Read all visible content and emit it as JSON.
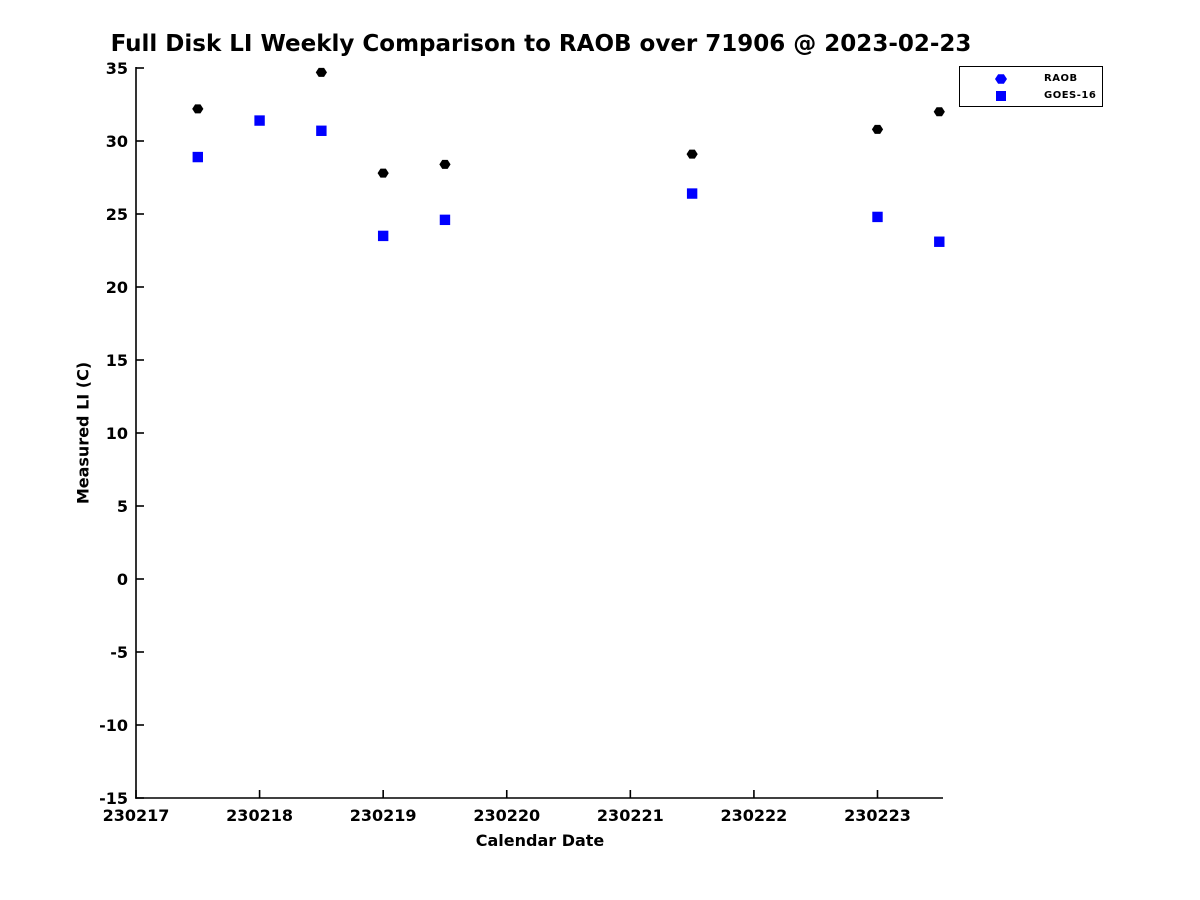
{
  "figure": {
    "background_color": "#ffffff",
    "text_color": "#000000"
  },
  "chart_data": {
    "type": "scatter",
    "title": "Full Disk LI Weekly Comparison to RAOB over 71906 @ 2023-02-23",
    "xlabel": "Calendar Date",
    "ylabel": "Measured LI (C)",
    "xlim": [
      230217,
      230223.53
    ],
    "ylim": [
      -15,
      35
    ],
    "x_ticks": [
      230217,
      230218,
      230219,
      230220,
      230221,
      230222,
      230223
    ],
    "y_ticks": [
      -15,
      -10,
      -5,
      0,
      5,
      10,
      15,
      20,
      25,
      30,
      35
    ],
    "grid": false,
    "axis_color": "#000000",
    "legend": {
      "position": "top-right-outside",
      "entries": [
        {
          "label": "RAOB",
          "marker": "hexagon",
          "color": "#0000ff"
        },
        {
          "label": "GOES-16",
          "marker": "square",
          "color": "#0000ff"
        }
      ]
    },
    "series": [
      {
        "name": "RAOB",
        "marker": "hexagon",
        "color": "#000000",
        "points": [
          [
            230217.5,
            32.2
          ],
          [
            230218.5,
            34.7
          ],
          [
            230219.0,
            27.8
          ],
          [
            230219.5,
            28.4
          ],
          [
            230221.5,
            29.1
          ],
          [
            230223.0,
            30.8
          ],
          [
            230223.5,
            32.0
          ]
        ]
      },
      {
        "name": "GOES-16",
        "marker": "square",
        "color": "#0000ff",
        "points": [
          [
            230217.5,
            28.9
          ],
          [
            230218.0,
            31.4
          ],
          [
            230218.5,
            30.7
          ],
          [
            230219.0,
            23.5
          ],
          [
            230219.5,
            24.6
          ],
          [
            230221.5,
            26.4
          ],
          [
            230223.0,
            24.8
          ],
          [
            230223.5,
            23.1
          ]
        ]
      }
    ]
  }
}
